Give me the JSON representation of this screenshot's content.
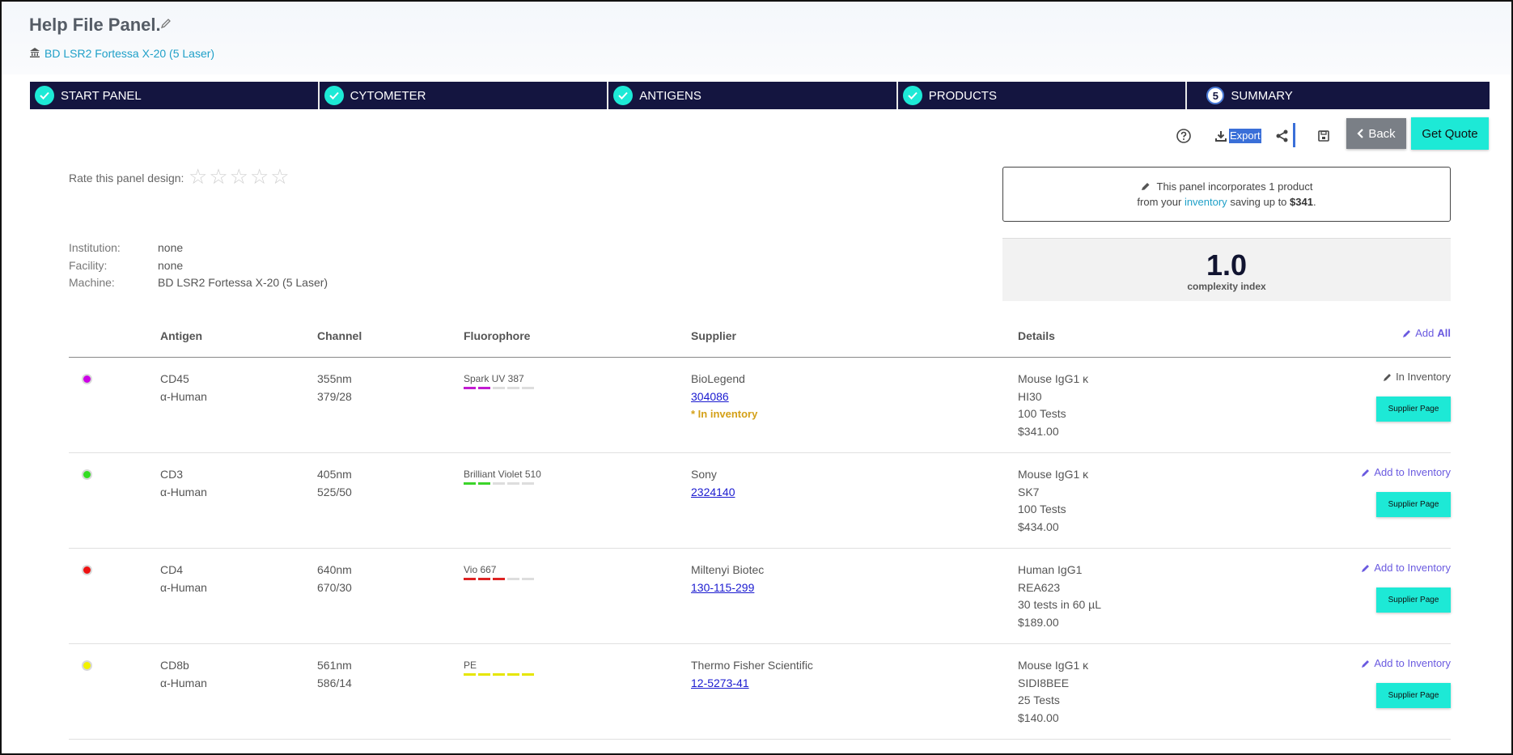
{
  "header": {
    "title": "Help File Panel.",
    "machine_link": "BD LSR2 Fortessa X-20 (5 Laser)"
  },
  "steps": [
    {
      "label": "START PANEL",
      "done": true
    },
    {
      "label": "CYTOMETER",
      "done": true
    },
    {
      "label": "ANTIGENS",
      "done": true
    },
    {
      "label": "PRODUCTS",
      "done": true
    },
    {
      "label": "SUMMARY",
      "number": "5",
      "done": false
    }
  ],
  "toolbar": {
    "export_label": "Export",
    "back_label": "Back",
    "quote_label": "Get Quote"
  },
  "rating": {
    "label": "Rate this panel design:",
    "max_stars": 5,
    "value": 0
  },
  "info_box": {
    "line1": "This panel incorporates 1 product",
    "line2_pre": "from your",
    "line2_link": "inventory",
    "line2_mid": "saving up to",
    "line2_amount": "$341",
    "line2_end": "."
  },
  "complexity": {
    "value": "1.0",
    "label": "complexity index"
  },
  "meta": [
    {
      "key": "Institution:",
      "value": "none"
    },
    {
      "key": "Facility:",
      "value": "none"
    },
    {
      "key": "Machine:",
      "value": "BD LSR2 Fortessa X-20 (5 Laser)"
    }
  ],
  "table": {
    "headers": {
      "antigen": "Antigen",
      "channel": "Channel",
      "fluorophore": "Fluorophore",
      "supplier": "Supplier",
      "details": "Details"
    },
    "add_all_pre": "Add",
    "add_all_bold": "All",
    "supplier_button": "Supplier Page",
    "rows": [
      {
        "dot_color": "#cc00e6",
        "antigen": "CD45",
        "species": "α-Human",
        "laser": "355nm",
        "filter": "379/28",
        "fluorophore": "Spark UV 387",
        "fluor_color": "#c21bd1",
        "fluor_level": 2,
        "supplier": "BioLegend",
        "catalog": "304086",
        "inventory_note": "* In inventory",
        "isotype": "Mouse IgG1 κ",
        "clone": "HI30",
        "size": "100 Tests",
        "price": "$341.00",
        "action": "In Inventory",
        "action_style": "gray"
      },
      {
        "dot_color": "#33dd22",
        "antigen": "CD3",
        "species": "α-Human",
        "laser": "405nm",
        "filter": "525/50",
        "fluorophore": "Brilliant Violet 510",
        "fluor_color": "#3bd42a",
        "fluor_level": 2,
        "supplier": "Sony",
        "catalog": "2324140",
        "inventory_note": "",
        "isotype": "Mouse IgG1 κ",
        "clone": "SK7",
        "size": "100 Tests",
        "price": "$434.00",
        "action": "Add to Inventory",
        "action_style": "link"
      },
      {
        "dot_color": "#ee1111",
        "antigen": "CD4",
        "species": "α-Human",
        "laser": "640nm",
        "filter": "670/30",
        "fluorophore": "Vio 667",
        "fluor_color": "#dd2222",
        "fluor_level": 3,
        "supplier": "Miltenyi Biotec",
        "catalog": "130-115-299",
        "inventory_note": "",
        "isotype": "Human IgG1",
        "clone": "REA623",
        "size": "30 tests in 60 µL",
        "price": "$189.00",
        "action": "Add to Inventory",
        "action_style": "link"
      },
      {
        "dot_color": "#f2f200",
        "antigen": "CD8b",
        "species": "α-Human",
        "laser": "561nm",
        "filter": "586/14",
        "fluorophore": "PE",
        "fluor_color": "#e6e600",
        "fluor_level": 5,
        "supplier": "Thermo Fisher Scientific",
        "catalog": "12-5273-41",
        "inventory_note": "",
        "isotype": "Mouse IgG1 κ",
        "clone": "SIDI8BEE",
        "size": "25 Tests",
        "price": "$140.00",
        "action": "Add to Inventory",
        "action_style": "link"
      }
    ]
  }
}
